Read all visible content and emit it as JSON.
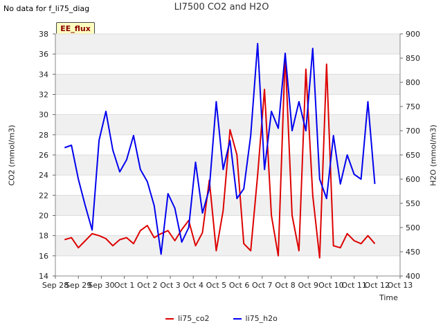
{
  "header": {
    "no_data_text": "No data for f_li75_diag",
    "badge": "EE_flux"
  },
  "chart_data": {
    "type": "line",
    "title": "LI7500 CO2 and H2O",
    "xlabel": "Time",
    "ylabel": "CO2 (mmol/m3)",
    "ylabel_right": "H2O (mmol/m3)",
    "ylim": [
      14,
      38
    ],
    "ylim_right": [
      400,
      900
    ],
    "yticks": [
      "14",
      "16",
      "18",
      "20",
      "22",
      "24",
      "26",
      "28",
      "30",
      "32",
      "34",
      "36",
      "38"
    ],
    "yticks_right": [
      "400",
      "450",
      "500",
      "550",
      "600",
      "650",
      "700",
      "750",
      "800",
      "850",
      "900"
    ],
    "x_range_days": [
      0,
      15
    ],
    "x": [
      0.4,
      0.7,
      1.0,
      1.3,
      1.6,
      1.9,
      2.2,
      2.5,
      2.8,
      3.1,
      3.4,
      3.7,
      4.0,
      4.3,
      4.6,
      4.9,
      5.2,
      5.5,
      5.8,
      6.1,
      6.4,
      6.7,
      7.0,
      7.3,
      7.6,
      7.9,
      8.2,
      8.5,
      8.8,
      9.1,
      9.4,
      9.7,
      10.0,
      10.3,
      10.6,
      10.9,
      11.2,
      11.5,
      11.8,
      12.1,
      12.4,
      12.7,
      13.0,
      13.3,
      13.6,
      13.9
    ],
    "xticks": [
      "Sep 28",
      "Sep 29",
      "Sep 30",
      "Oct 1",
      "Oct 2",
      "Oct 3",
      "Oct 4",
      "Oct 5",
      "Oct 6",
      "Oct 7",
      "Oct 8",
      "Oct 9",
      "Oct 10",
      "Oct 11",
      "Oct 12",
      "Oct 13"
    ],
    "series": [
      {
        "name": "li75_co2",
        "color": "#dd0000",
        "axis": "left",
        "values": [
          17.6,
          17.8,
          16.8,
          17.5,
          18.2,
          18.0,
          17.7,
          17.0,
          17.6,
          17.8,
          17.2,
          18.5,
          19.0,
          17.8,
          18.2,
          18.5,
          17.5,
          18.6,
          19.5,
          17.0,
          18.3,
          23.5,
          16.5,
          20.5,
          28.5,
          26.0,
          17.2,
          16.5,
          24.0,
          32.5,
          20.0,
          16.0,
          36.0,
          20.0,
          16.5,
          34.5,
          22.0,
          15.8,
          35.0,
          17.0,
          16.8,
          18.2,
          17.5,
          17.2,
          18.0,
          17.2
        ]
      },
      {
        "name": "li75_h2o",
        "color": "#0000ee",
        "axis": "right",
        "values": [
          665,
          670,
          600,
          545,
          495,
          680,
          740,
          660,
          615,
          640,
          690,
          620,
          595,
          545,
          445,
          570,
          540,
          470,
          500,
          635,
          530,
          580,
          760,
          620,
          680,
          560,
          580,
          690,
          880,
          620,
          740,
          705,
          860,
          700,
          760,
          700,
          870,
          600,
          560,
          690,
          590,
          650,
          610,
          600,
          760,
          590
        ]
      }
    ]
  },
  "legend": {
    "items": [
      "li75_co2",
      "li75_h2o"
    ]
  }
}
